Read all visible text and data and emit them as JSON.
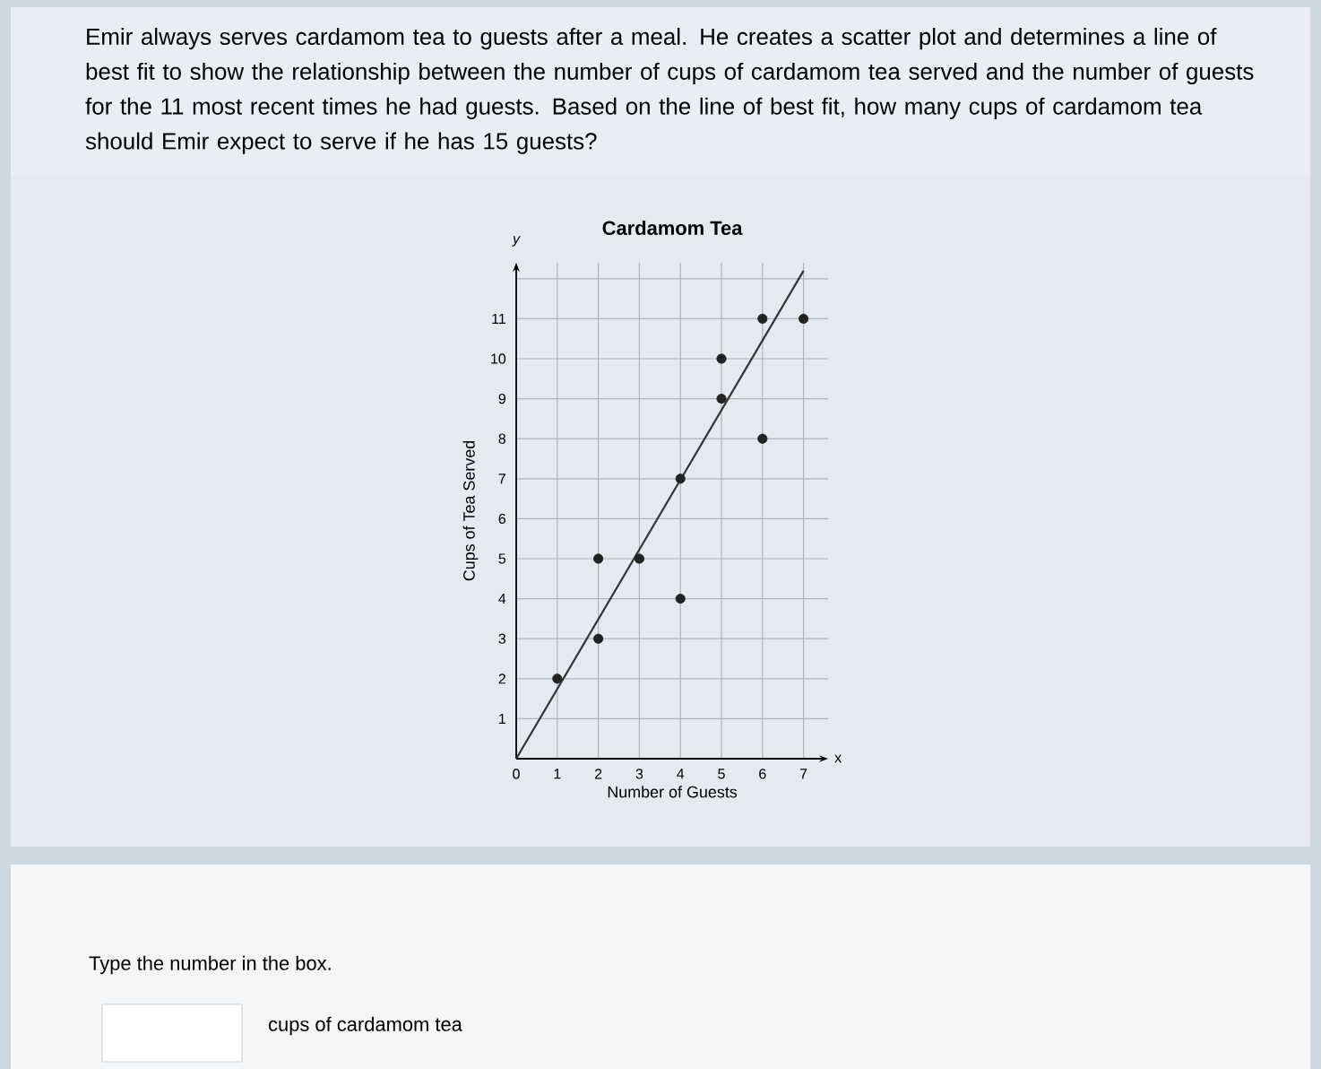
{
  "chart_data": {
    "type": "scatter",
    "title": "Cardamom Tea",
    "xlabel": "Number of Guests",
    "ylabel": "Cups of Tea Served",
    "annotations": [
      "Emir always serves cardamom tea to guests after a meal. He creates a scatter plot and determines a line of best fit to show the relationship between the number of cups of cardamom tea served and the number of guests for the 11 most recent times he had guests. Based on the line of best fit, how many cups of cardamom tea should Emir expect to serve if he has 15 guests?",
      "Type the number in the box.",
      "cups of cardamom tea",
      "x",
      "y"
    ],
    "xlim": [
      0,
      7.6
    ],
    "ylim": [
      0,
      12.4
    ],
    "xticks": [
      0,
      1,
      2,
      3,
      4,
      5,
      6,
      7
    ],
    "yticks": [
      1,
      2,
      3,
      4,
      5,
      6,
      7,
      8,
      9,
      10,
      11,
      {
        "value": 12,
        "label": null
      }
    ],
    "grid": true,
    "series": [
      {
        "color": "#222222",
        "marker": "circle",
        "x": [
          1,
          2,
          2,
          3,
          4,
          4,
          5,
          5,
          6,
          6,
          7
        ],
        "values": [
          2,
          3,
          5,
          5,
          4,
          7,
          9,
          10,
          8,
          11,
          11
        ]
      },
      {
        "type": "line",
        "color": "#333333",
        "marker": "none",
        "x": [
          0,
          7
        ],
        "values": [
          0,
          12.2
        ]
      }
    ]
  }
}
